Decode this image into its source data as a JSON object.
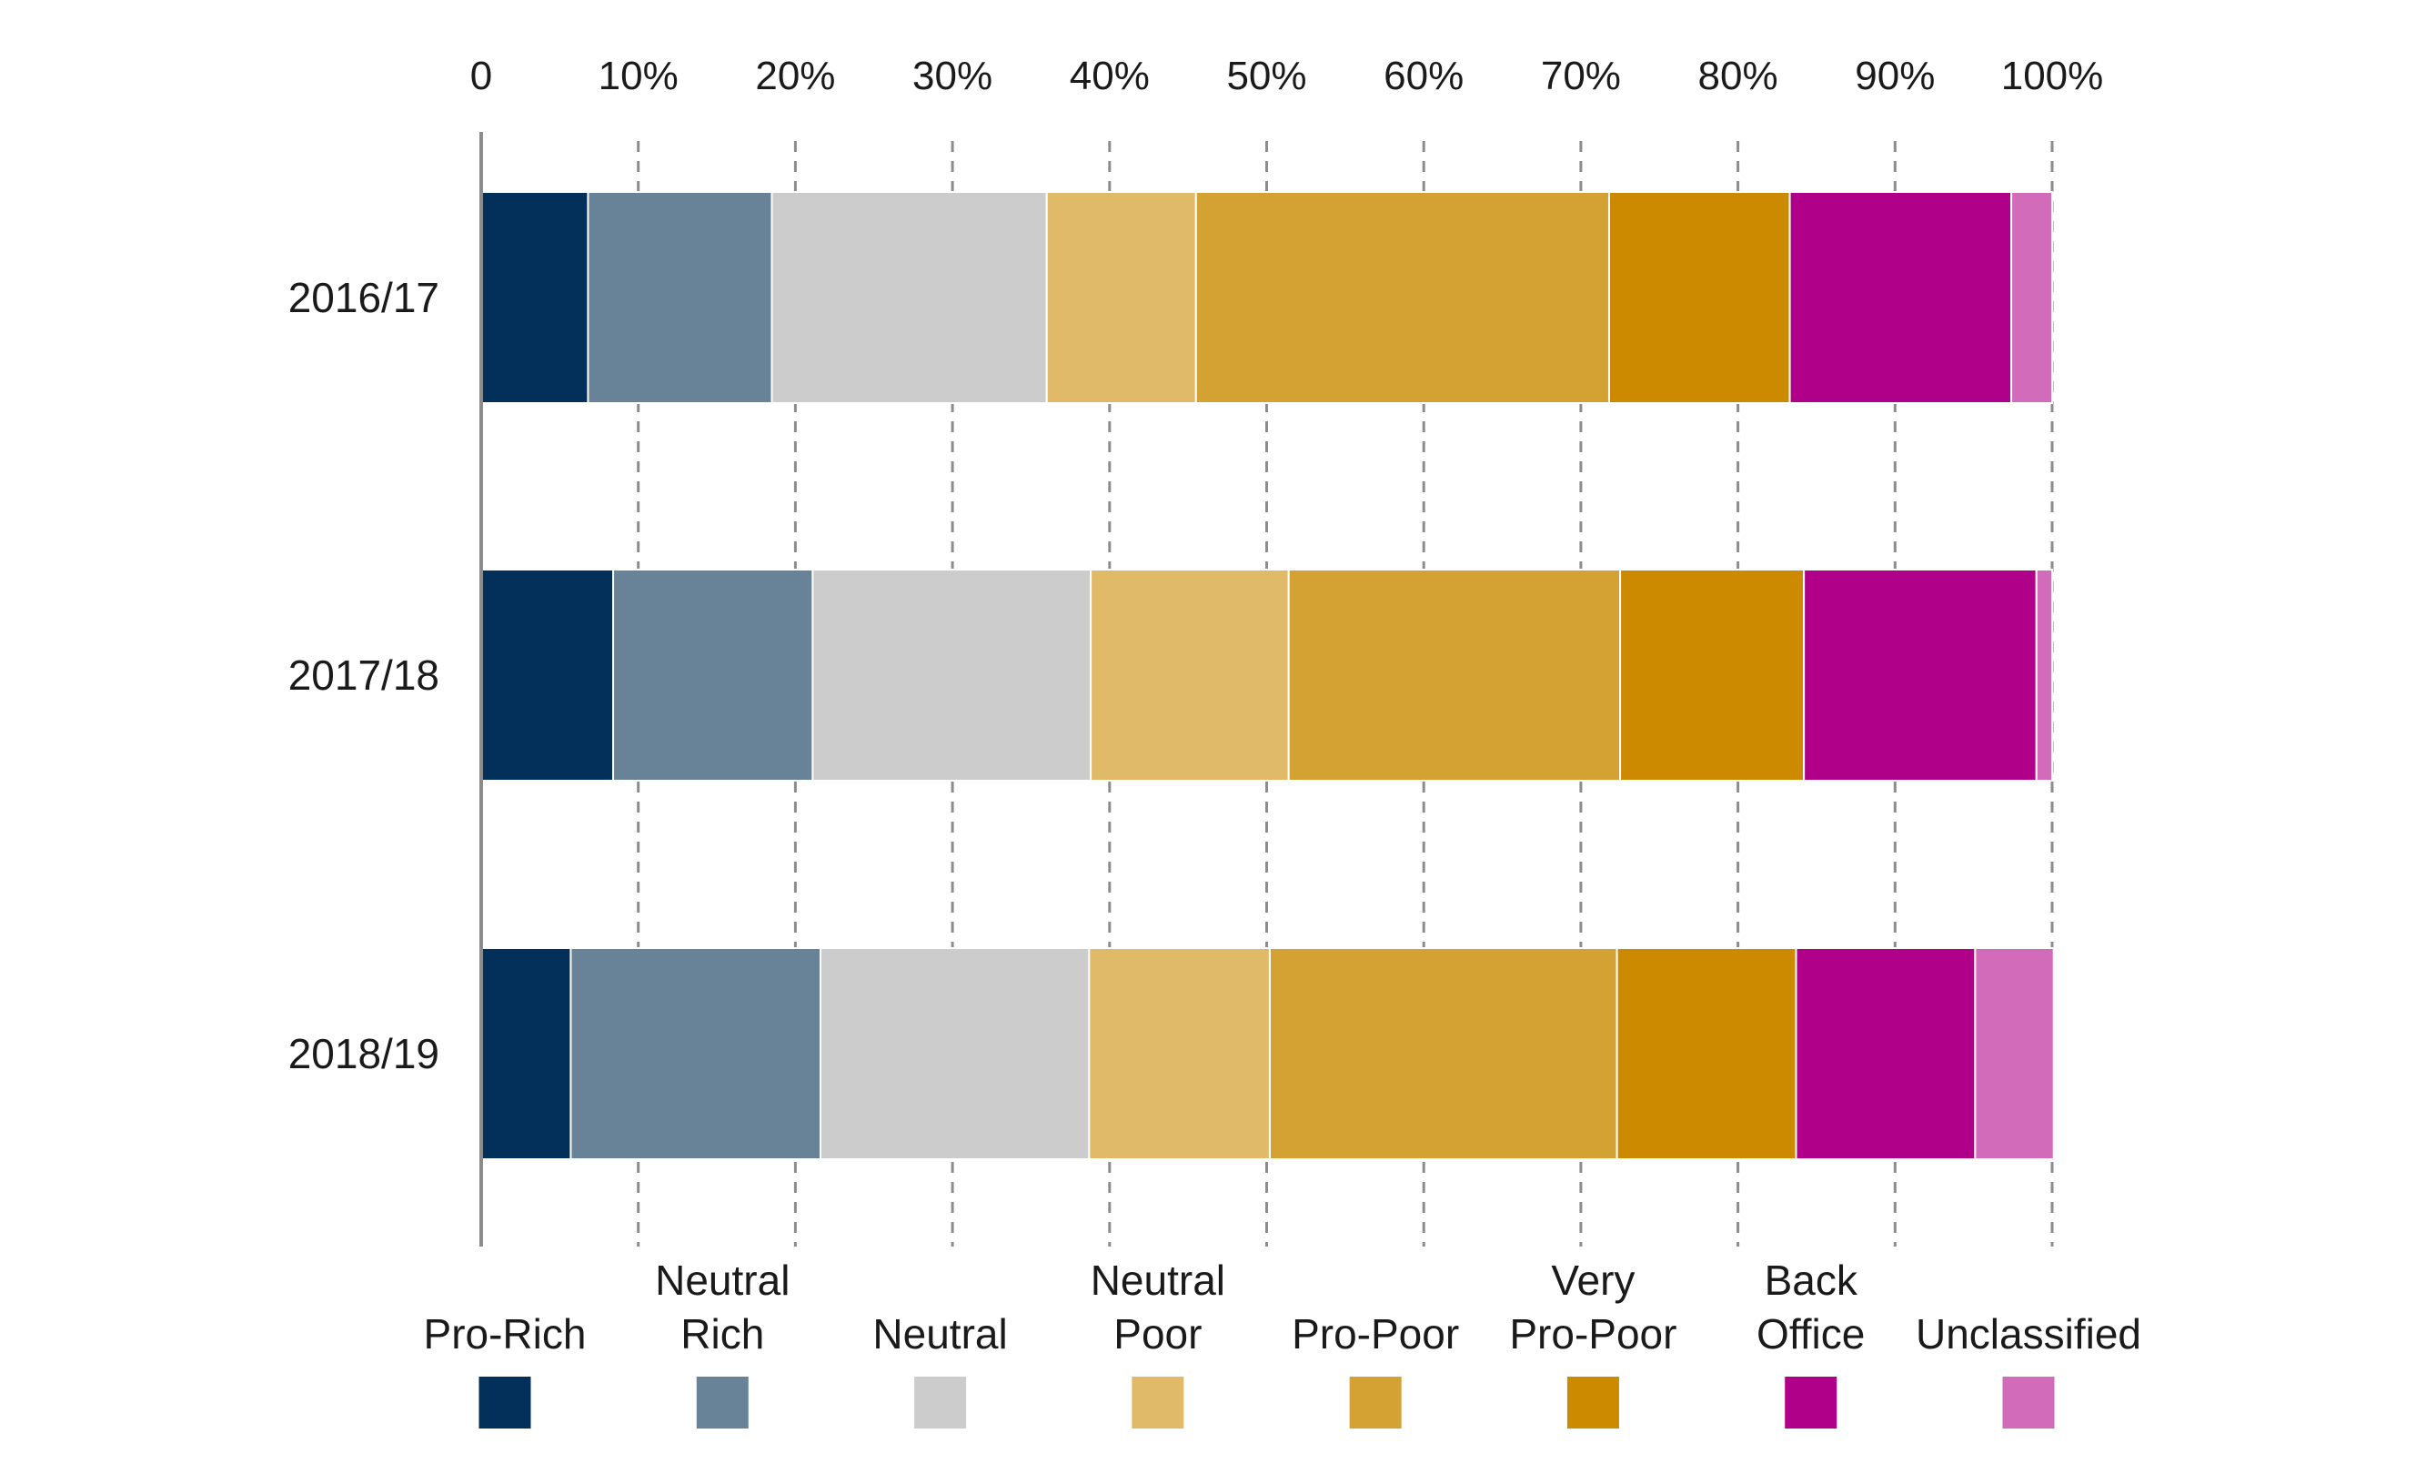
{
  "chart_data": {
    "type": "bar",
    "orientation": "horizontal",
    "stacked": true,
    "xlim": [
      0,
      100
    ],
    "x_tick_labels": [
      "0",
      "10%",
      "20%",
      "30%",
      "40%",
      "50%",
      "60%",
      "70%",
      "80%",
      "90%",
      "100%"
    ],
    "categories": [
      "2016/17",
      "2017/18",
      "2018/19"
    ],
    "grid": "vertical dashed",
    "legend_placement": "bottom",
    "series": [
      {
        "name": "Pro-Rich",
        "legend_lines": [
          "Pro-Rich"
        ],
        "color": "#02305a",
        "values": [
          6.8,
          8.4,
          5.7
        ]
      },
      {
        "name": "Neutral Rich",
        "legend_lines": [
          "Neutral",
          "Rich"
        ],
        "color": "#688398",
        "values": [
          11.7,
          12.7,
          15.9
        ]
      },
      {
        "name": "Neutral",
        "legend_lines": [
          "Neutral"
        ],
        "color": "#cccccc",
        "values": [
          17.5,
          17.7,
          17.1
        ]
      },
      {
        "name": "Neutral Poor",
        "legend_lines": [
          "Neutral",
          "Poor"
        ],
        "color": "#e0ba69",
        "values": [
          9.5,
          12.6,
          11.5
        ]
      },
      {
        "name": "Pro-Poor",
        "legend_lines": [
          "Pro-Poor"
        ],
        "color": "#d4a232",
        "values": [
          26.3,
          21.1,
          22.1
        ]
      },
      {
        "name": "Very Pro-Poor",
        "legend_lines": [
          "Very",
          "Pro-Poor"
        ],
        "color": "#cc8a00",
        "values": [
          11.5,
          11.7,
          11.4
        ]
      },
      {
        "name": "Back Office",
        "legend_lines": [
          "Back",
          "Office"
        ],
        "color": "#b0008a",
        "values": [
          14.1,
          14.8,
          11.4
        ]
      },
      {
        "name": "Unclassified",
        "legend_lines": [
          "Unclassified"
        ],
        "color": "#d26bba",
        "values": [
          2.6,
          1.0,
          5.0
        ]
      }
    ]
  }
}
